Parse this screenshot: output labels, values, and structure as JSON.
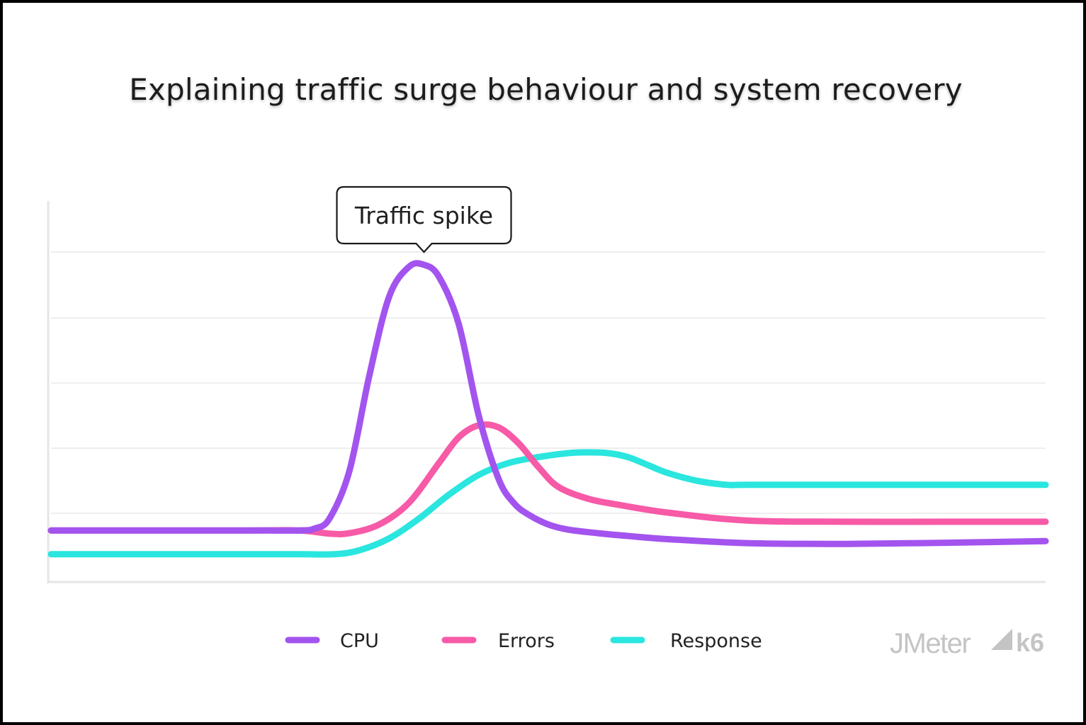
{
  "title": "Explaining traffic surge behaviour and system recovery",
  "annotation": "Traffic spike",
  "brands": {
    "left": "JMeter",
    "right": "k6"
  },
  "chart_data": {
    "type": "line",
    "title": "Explaining traffic surge behaviour and system recovery",
    "xlabel": "",
    "ylabel": "",
    "xlim": [
      0,
      100
    ],
    "ylim": [
      0,
      100
    ],
    "grid": true,
    "legend_position": "bottom",
    "series": [
      {
        "name": "CPU",
        "color": "#a354ee",
        "x": [
          0,
          10,
          20,
          25,
          26.5,
          28,
          30,
          32,
          34,
          36,
          37.5,
          39,
          41,
          43,
          45,
          46.5,
          48,
          50,
          52,
          55,
          58,
          62,
          70,
          80,
          90,
          100
        ],
        "y": [
          13,
          13,
          13,
          13,
          13.5,
          16,
          28,
          52,
          72,
          79.5,
          80,
          77,
          65,
          42,
          26,
          20,
          17,
          14.5,
          13.2,
          12.3,
          11.6,
          10.8,
          9.8,
          9.6,
          9.9,
          10.3
        ]
      },
      {
        "name": "Errors",
        "color": "#f75aa6",
        "x": [
          0,
          10,
          20,
          25,
          28,
          30,
          33,
          36,
          39,
          41,
          43,
          45,
          47,
          49,
          51,
          54,
          57,
          62,
          70,
          80,
          90,
          100
        ],
        "y": [
          13,
          13,
          13,
          13,
          12.2,
          12.3,
          14.5,
          20,
          30,
          36.5,
          39.5,
          39,
          35,
          29,
          24,
          21,
          19.5,
          17.5,
          15.5,
          15.2,
          15.2,
          15.2
        ]
      },
      {
        "name": "Response",
        "color": "#2ae6df",
        "x": [
          0,
          10,
          20,
          25,
          28.5,
          31,
          34,
          37,
          40,
          43,
          46,
          49,
          52,
          54,
          56,
          58,
          60,
          62,
          65,
          68,
          70,
          80,
          90,
          100
        ],
        "y": [
          7,
          7,
          7,
          7,
          7,
          8,
          11,
          16,
          22,
          27,
          30,
          31.5,
          32.5,
          32.7,
          32.5,
          31.5,
          29.5,
          27.5,
          25.5,
          24.5,
          24.5,
          24.5,
          24.5,
          24.5
        ]
      }
    ]
  }
}
